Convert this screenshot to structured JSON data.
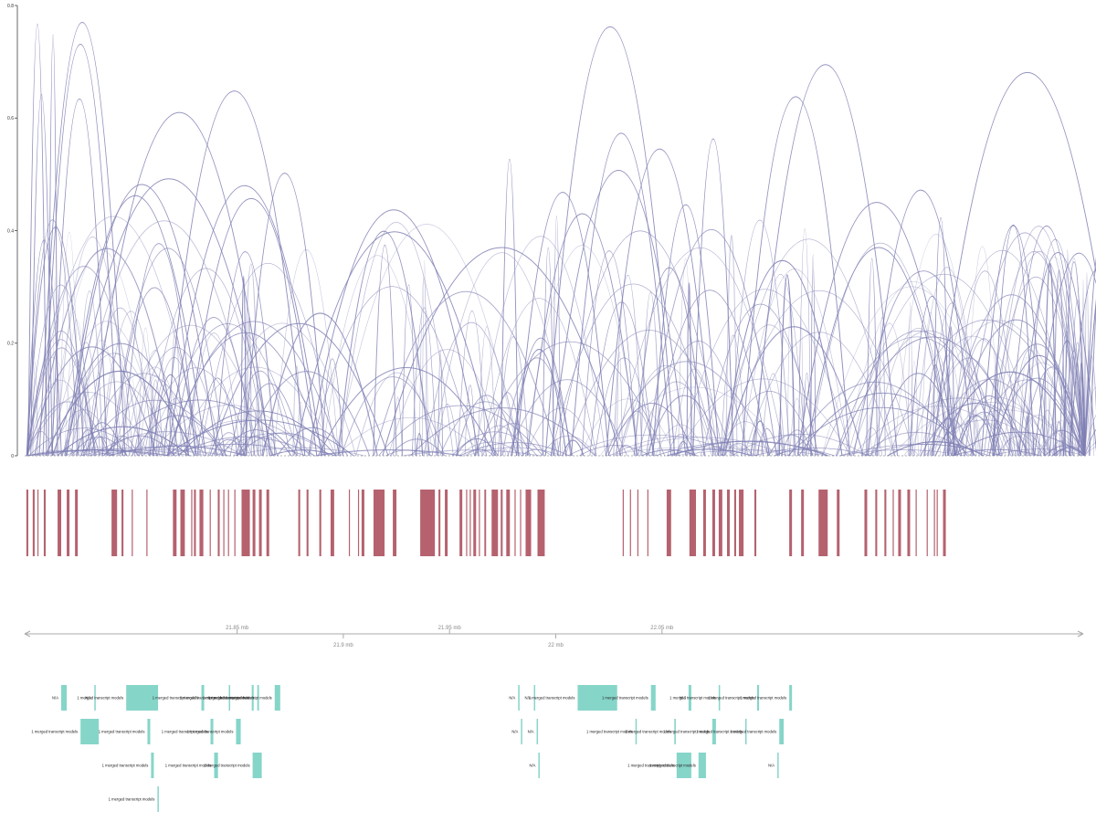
{
  "chart_data": [
    {
      "type": "arc",
      "title": "",
      "xlabel": "",
      "ylabel": "",
      "x_unit": "mb",
      "xlim": [
        21.75,
        22.25
      ],
      "ylim": [
        0,
        0.8
      ],
      "yticks": [
        "0",
        "0.2",
        "0.4",
        "0.6",
        "0.8"
      ],
      "grid": false,
      "arc_color": "#7f7fb4",
      "arc_count_estimate": 400,
      "highlighted_arcs": [
        {
          "x1": 21.7517,
          "x2": 21.7603,
          "height": 0.767
        },
        {
          "x1": 21.7529,
          "x2": 21.7629,
          "height": 0.642
        },
        {
          "x1": 21.7612,
          "x2": 21.7655,
          "height": 0.748
        },
        {
          "x1": 21.7569,
          "x2": 21.7973,
          "height": 0.77
        },
        {
          "x1": 21.7586,
          "x2": 21.7939,
          "height": 0.731
        },
        {
          "x1": 21.7629,
          "x2": 21.7887,
          "height": 0.634
        },
        {
          "x1": 21.7801,
          "x2": 21.8655,
          "height": 0.61
        },
        {
          "x1": 21.8155,
          "x2": 21.8819,
          "height": 0.648
        },
        {
          "x1": 21.8534,
          "x2": 21.8914,
          "height": 0.502
        },
        {
          "x1": 21.7694,
          "x2": 21.8664,
          "height": 0.492
        },
        {
          "x1": 21.7698,
          "x2": 21.8405,
          "height": 0.482
        },
        {
          "x1": 21.8173,
          "x2": 21.8897,
          "height": 0.48
        },
        {
          "x1": 21.7689,
          "x2": 21.8353,
          "height": 0.462
        },
        {
          "x1": 21.8258,
          "x2": 21.8875,
          "height": 0.457
        },
        {
          "x1": 21.8836,
          "x2": 21.9638,
          "height": 0.437
        },
        {
          "x1": 21.8767,
          "x2": 21.9716,
          "height": 0.398
        },
        {
          "x1": 21.9185,
          "x2": 22.0306,
          "height": 0.37
        },
        {
          "x1": 21.9742,
          "x2": 21.9823,
          "height": 0.527
        },
        {
          "x1": 21.9815,
          "x2": 22.025,
          "height": 0.468
        },
        {
          "x1": 21.9952,
          "x2": 22.056,
          "height": 0.762
        },
        {
          "x1": 21.9866,
          "x2": 22.0384,
          "height": 0.43
        },
        {
          "x1": 22.0073,
          "x2": 22.0543,
          "height": 0.573
        },
        {
          "x1": 21.9978,
          "x2": 22.0612,
          "height": 0.507
        },
        {
          "x1": 22.0237,
          "x2": 22.0741,
          "height": 0.545
        },
        {
          "x1": 22.0457,
          "x2": 22.0767,
          "height": 0.446
        },
        {
          "x1": 22.0646,
          "x2": 22.0836,
          "height": 0.563
        },
        {
          "x1": 22.0875,
          "x2": 22.1384,
          "height": 0.638
        },
        {
          "x1": 22.0931,
          "x2": 22.1608,
          "height": 0.695
        },
        {
          "x1": 22.1138,
          "x2": 22.1884,
          "height": 0.45
        },
        {
          "x1": 22.1177,
          "x2": 22.1862,
          "height": 0.37
        },
        {
          "x1": 22.147,
          "x2": 22.1966,
          "height": 0.472
        },
        {
          "x1": 22.1772,
          "x2": 22.2668,
          "height": 0.681
        },
        {
          "x1": 22.1776,
          "x2": 22.1849,
          "height": 0.423
        },
        {
          "x1": 22.2004,
          "x2": 22.2302,
          "height": 0.409
        },
        {
          "x1": 22.2181,
          "x2": 22.2547,
          "height": 0.361
        },
        {
          "x1": 22.2254,
          "x2": 22.2672,
          "height": 0.36
        },
        {
          "x1": 22.2513,
          "x2": 22.2677,
          "height": 0.433
        },
        {
          "x1": 22.2418,
          "x2": 22.2672,
          "height": 0.33
        },
        {
          "x1": 22.2681,
          "x2": 22.2694,
          "height": 0.276
        },
        {
          "x1": 22.278,
          "x2": 22.2883,
          "height": 0.185
        }
      ]
    },
    {
      "type": "track",
      "title": "",
      "color": "#b5626e",
      "intervals": [
        [
          21.7508,
          21.7517
        ],
        [
          21.7538,
          21.7547
        ],
        [
          21.756,
          21.7564
        ],
        [
          21.759,
          21.7599
        ],
        [
          21.7655,
          21.7672
        ],
        [
          21.7698,
          21.7711
        ],
        [
          21.7737,
          21.775
        ],
        [
          21.7909,
          21.7935
        ],
        [
          21.7956,
          21.7965
        ],
        [
          21.8004,
          21.8008
        ],
        [
          21.8073,
          21.8077
        ],
        [
          21.8198,
          21.8215
        ],
        [
          21.8233,
          21.8254
        ],
        [
          21.8284,
          21.8288
        ],
        [
          21.8297,
          21.8306
        ],
        [
          21.8323,
          21.8341
        ],
        [
          21.8371,
          21.8375
        ],
        [
          21.8409,
          21.8418
        ],
        [
          21.8435,
          21.8439
        ],
        [
          21.8457,
          21.8461
        ],
        [
          21.8487,
          21.8491
        ],
        [
          21.8521,
          21.856
        ],
        [
          21.8573,
          21.8586
        ],
        [
          21.8603,
          21.8616
        ],
        [
          21.8638,
          21.8651
        ],
        [
          21.8788,
          21.8797
        ],
        [
          21.8827,
          21.8836
        ],
        [
          21.8887,
          21.8896
        ],
        [
          21.894,
          21.8957
        ],
        [
          21.9026,
          21.903
        ],
        [
          21.9069,
          21.9073
        ],
        [
          21.9086,
          21.9099
        ],
        [
          21.9142,
          21.9194
        ],
        [
          21.9233,
          21.925
        ],
        [
          21.9362,
          21.9431
        ],
        [
          21.9448,
          21.9457
        ],
        [
          21.9478,
          21.9491
        ],
        [
          21.9547,
          21.956
        ],
        [
          21.9578,
          21.9582
        ],
        [
          21.9595,
          21.9599
        ],
        [
          21.9612,
          21.9625
        ],
        [
          21.9638,
          21.9642
        ],
        [
          21.9664,
          21.9672
        ],
        [
          21.9698,
          21.9728
        ],
        [
          21.9741,
          21.975
        ],
        [
          21.9767,
          21.9784
        ],
        [
          21.9806,
          21.981
        ],
        [
          21.9832,
          21.9836
        ],
        [
          21.9858,
          21.9884
        ],
        [
          21.9914,
          21.9948
        ],
        [
          22.0315,
          22.0319
        ],
        [
          22.0349,
          22.0353
        ],
        [
          22.0384,
          22.0388
        ],
        [
          22.0431,
          22.0435
        ],
        [
          22.0522,
          22.0543
        ],
        [
          22.0629,
          22.066
        ],
        [
          22.0694,
          22.0707
        ],
        [
          22.0737,
          22.075
        ],
        [
          22.0767,
          22.0784
        ],
        [
          22.0806,
          22.0819
        ],
        [
          22.084,
          22.0849
        ],
        [
          22.0862,
          22.0884
        ],
        [
          22.0935,
          22.0944
        ],
        [
          22.1099,
          22.1112
        ],
        [
          22.1155,
          22.1168
        ],
        [
          22.1237,
          22.128
        ],
        [
          22.1323,
          22.1336
        ],
        [
          22.1453,
          22.1466
        ],
        [
          22.1504,
          22.1513
        ],
        [
          22.1547,
          22.1556
        ],
        [
          22.1586,
          22.159
        ],
        [
          22.1612,
          22.1625
        ],
        [
          22.1655,
          22.1668
        ],
        [
          22.1694,
          22.1698
        ],
        [
          22.1746,
          22.175
        ],
        [
          22.178,
          22.1784
        ],
        [
          22.1793,
          22.1797
        ],
        [
          22.1823,
          22.1836
        ]
      ]
    },
    {
      "type": "ruler",
      "x_unit": "mb",
      "major_ticks": [
        "21.85 mb",
        "21.95 mb",
        "22.05 mb"
      ],
      "minor_ticks": [
        "21.9 mb",
        "22 mb"
      ]
    },
    {
      "type": "gene-track",
      "color": "#86d5c9",
      "features": [
        {
          "start": 21.7672,
          "end": 21.7698,
          "label": "N/A",
          "row": 1
        },
        {
          "start": 21.7828,
          "end": 21.7832,
          "label": "N/A",
          "row": 1
        },
        {
          "start": 21.7978,
          "end": 21.8128,
          "label": "1 merged transcript models",
          "row": 1
        },
        {
          "start": 21.8332,
          "end": 21.8345,
          "label": "1 merged transcript models",
          "row": 1
        },
        {
          "start": 21.8461,
          "end": 21.8466,
          "label": "1 merged transcript models",
          "row": 1
        },
        {
          "start": 21.8569,
          "end": 21.8578,
          "label": "1 merged transcript models",
          "row": 1
        },
        {
          "start": 21.8595,
          "end": 21.8603,
          "label": "1 merged transcript models",
          "row": 1
        },
        {
          "start": 21.8677,
          "end": 21.8703,
          "label": "1 merged transcript models",
          "row": 1
        },
        {
          "start": 21.9823,
          "end": 21.9827,
          "label": "N/A",
          "row": 1
        },
        {
          "start": 21.9897,
          "end": 21.9901,
          "label": "N/A",
          "row": 1
        },
        {
          "start": 22.0103,
          "end": 22.0289,
          "label": "1 merged transcript models",
          "row": 1
        },
        {
          "start": 22.0448,
          "end": 22.047,
          "label": "1 merged transcript models",
          "row": 1
        },
        {
          "start": 22.0625,
          "end": 22.0638,
          "label": "N/A",
          "row": 1
        },
        {
          "start": 22.0767,
          "end": 22.0772,
          "label": "1 merged transcript models",
          "row": 1
        },
        {
          "start": 22.0948,
          "end": 22.0957,
          "label": "1 merged transcript models",
          "row": 1
        },
        {
          "start": 22.1099,
          "end": 22.1112,
          "label": "1 merged transcript models",
          "row": 1
        },
        {
          "start": 21.7763,
          "end": 21.7849,
          "label": "1 merged transcript models",
          "row": 2
        },
        {
          "start": 21.8078,
          "end": 21.8091,
          "label": "1 merged transcript models",
          "row": 2
        },
        {
          "start": 21.8375,
          "end": 21.8388,
          "label": "1 merged transcript models",
          "row": 2
        },
        {
          "start": 21.8495,
          "end": 21.8517,
          "label": "1 merged transcript models",
          "row": 2
        },
        {
          "start": 21.9836,
          "end": 21.984,
          "label": "N/A",
          "row": 2
        },
        {
          "start": 21.991,
          "end": 21.9914,
          "label": "N/A",
          "row": 2
        },
        {
          "start": 22.0375,
          "end": 22.0379,
          "label": "1 merged transcript models",
          "row": 2
        },
        {
          "start": 22.0558,
          "end": 22.0565,
          "label": "1 merged transcript models",
          "row": 2
        },
        {
          "start": 22.0737,
          "end": 22.0754,
          "label": "1 merged transcript models",
          "row": 2
        },
        {
          "start": 22.0892,
          "end": 22.0896,
          "label": "1 merged transcript models",
          "row": 2
        },
        {
          "start": 22.1052,
          "end": 22.1073,
          "label": "1 merged transcript models",
          "row": 2
        },
        {
          "start": 21.8095,
          "end": 21.8108,
          "label": "1 merged transcript models",
          "row": 3
        },
        {
          "start": 21.8392,
          "end": 21.841,
          "label": "1 merged transcript models",
          "row": 3
        },
        {
          "start": 21.8573,
          "end": 21.8616,
          "label": "1 merged transcript models",
          "row": 3
        },
        {
          "start": 21.9918,
          "end": 21.9922,
          "label": "N/A",
          "row": 3
        },
        {
          "start": 22.0569,
          "end": 22.0638,
          "label": "1 merged transcript models",
          "row": 3
        },
        {
          "start": 22.0672,
          "end": 22.0707,
          "label": "1 merged transcript models",
          "row": 3
        },
        {
          "start": 22.1043,
          "end": 22.1047,
          "label": "N/A",
          "row": 3
        },
        {
          "start": 21.8125,
          "end": 21.8129,
          "label": "1 merged transcript models",
          "row": 4
        }
      ]
    }
  ]
}
